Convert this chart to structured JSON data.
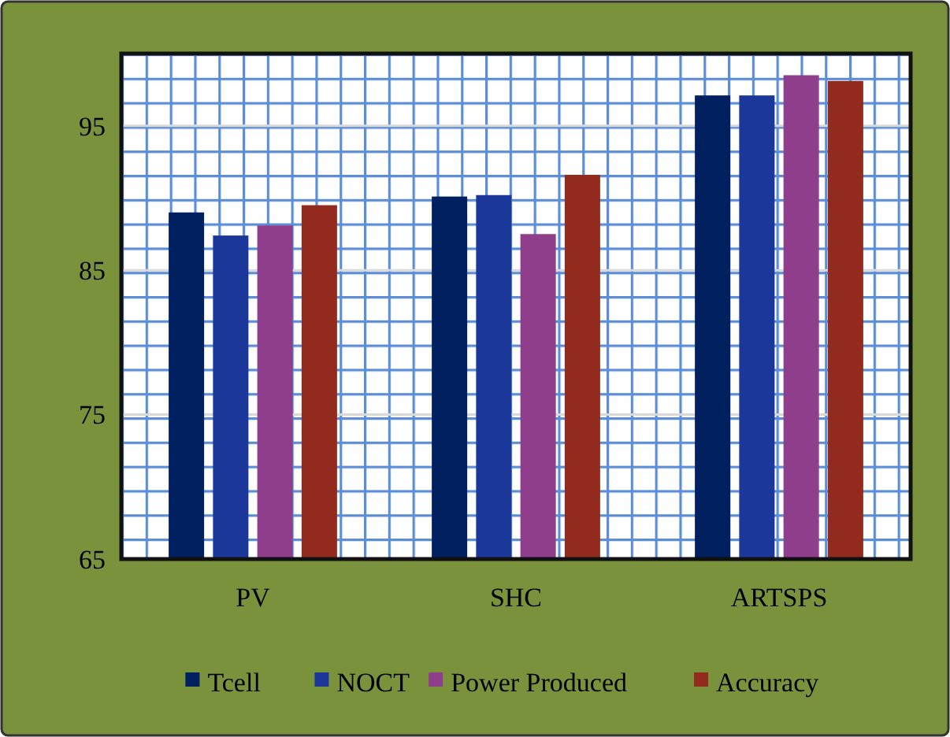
{
  "chart_data": {
    "type": "bar",
    "categories": [
      "PV",
      "SHC",
      "ARTSPS"
    ],
    "series": [
      {
        "name": "Tcell",
        "color": "#002060",
        "values": [
          89.0,
          90.1,
          97.1
        ]
      },
      {
        "name": "NOCT",
        "color": "#1b3799",
        "values": [
          87.4,
          90.2,
          97.1
        ]
      },
      {
        "name": "Power Produced",
        "color": "#8e3e8b",
        "values": [
          88.1,
          87.5,
          98.5
        ]
      },
      {
        "name": "Accuracy",
        "color": "#922a1e",
        "values": [
          89.5,
          91.6,
          98.1
        ]
      }
    ],
    "ylim": [
      65,
      100
    ],
    "yticks": [
      65,
      75,
      85,
      95
    ],
    "grid": "y",
    "legend": "bottom"
  }
}
